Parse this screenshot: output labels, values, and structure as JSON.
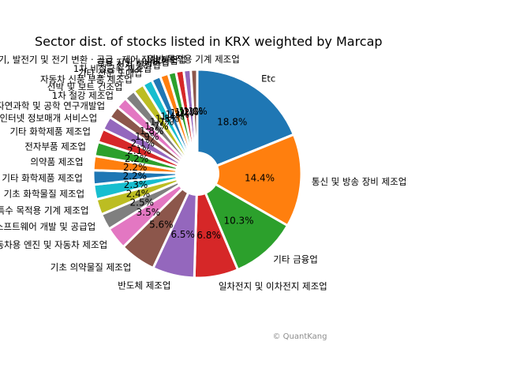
{
  "chart_data": {
    "type": "pie",
    "title": "Sector dist. of stocks listed in KRX weighted by Marcap",
    "credit": "© QuantKang",
    "start_angle_deg": 90,
    "counterclock": false,
    "min_pct_label": 1.0,
    "slices": [
      {
        "label": "Etc",
        "value": 18.8,
        "color": "#1f77b4"
      },
      {
        "label": "통신 및 방송 장비 제조업",
        "value": 14.4,
        "color": "#ff7f0e"
      },
      {
        "label": "기타 금융업",
        "value": 10.3,
        "color": "#2ca02c"
      },
      {
        "label": "일차전지 및 이차전지 제조업",
        "value": 6.8,
        "color": "#d62728"
      },
      {
        "label": "반도체 제조업",
        "value": 6.5,
        "color": "#9467bd"
      },
      {
        "label": "기초 의약물질 제조업",
        "value": 5.6,
        "color": "#8c564b"
      },
      {
        "label": "자동차용 엔진 및 자동차 제조업",
        "value": 3.5,
        "color": "#e377c2"
      },
      {
        "label": "소프트웨어 개발 및 공급업",
        "value": 2.5,
        "color": "#7f7f7f"
      },
      {
        "label": "특수 목적용 기계 제조업",
        "value": 2.4,
        "color": "#bcbd22"
      },
      {
        "label": "기초 화학물질 제조업",
        "value": 2.3,
        "color": "#17becf"
      },
      {
        "label": "기타 화학제품 제조업",
        "value": 2.2,
        "color": "#1f77b4"
      },
      {
        "label": "의약품 제조업",
        "value": 2.2,
        "color": "#ff7f0e"
      },
      {
        "label": "전자부품 제조업",
        "value": 2.2,
        "color": "#2ca02c"
      },
      {
        "label": "기타 화학제품 제조업",
        "value": 2.1,
        "color": "#d62728"
      },
      {
        "label": "자료처리, 호스팅, 포털 및 기타 인터넷 정보매개 서비스업",
        "value": 2.1,
        "color": "#9467bd"
      },
      {
        "label": "자연과학 및 공학 연구개발업",
        "value": 1.9,
        "color": "#8c564b"
      },
      {
        "label": "1차 철강 제조업",
        "value": 1.8,
        "color": "#e377c2"
      },
      {
        "label": "선박 및 보트 건조업",
        "value": 1.7,
        "color": "#7f7f7f"
      },
      {
        "label": "자동차 신품 부품 제조업",
        "value": 1.7,
        "color": "#bcbd22"
      },
      {
        "label": "기타 전문 도매업",
        "value": 1.5,
        "color": "#17becf"
      },
      {
        "label": "1차 비철금속 제조업",
        "value": 1.4,
        "color": "#1f77b4"
      },
      {
        "label": "전기 통신업",
        "value": 1.3,
        "color": "#ff7f0e"
      },
      {
        "label": "금융 지원 서비스업",
        "value": 1.2,
        "color": "#2ca02c"
      },
      {
        "label": "보험업",
        "value": 1.2,
        "color": "#d62728"
      },
      {
        "label": "전동기, 발전기 및 전기 변환 · 공급 · 제어 장치 제조업",
        "value": 1.1,
        "color": "#9467bd"
      },
      {
        "label": "일반 목적용 기계 제조업",
        "value": 1.0,
        "color": "#8c564b"
      }
    ]
  }
}
